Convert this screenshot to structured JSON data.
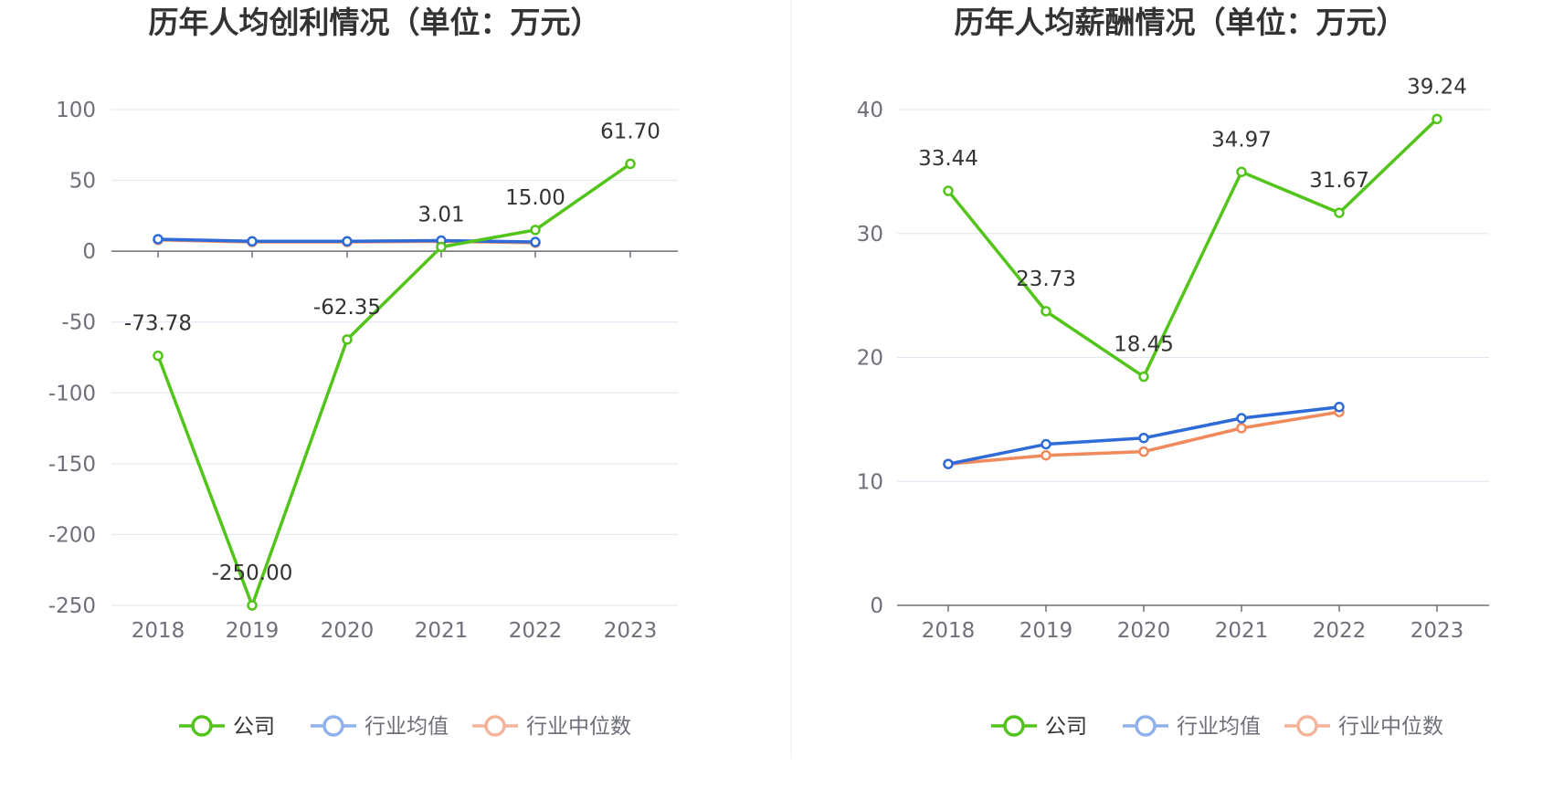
{
  "chart_data": [
    {
      "type": "line",
      "title": "历年人均创利情况（单位：万元）",
      "categories": [
        "2018",
        "2019",
        "2020",
        "2021",
        "2022",
        "2023"
      ],
      "ylim": [
        -250,
        100
      ],
      "yticks": [
        100,
        50,
        0,
        -50,
        -100,
        -150,
        -200,
        -250
      ],
      "grid": true,
      "legend_position": "bottom-center",
      "series": [
        {
          "name": "公司",
          "color": "#52c41a",
          "values": [
            -73.78,
            -250.0,
            -62.35,
            3.01,
            15.0,
            61.7
          ],
          "labels": [
            "-73.78",
            "-250.00",
            "-62.35",
            "3.01",
            "15.00",
            "61.70"
          ]
        },
        {
          "name": "行业均值",
          "color": "#2f6bd8",
          "values": [
            8.5,
            7.0,
            7.0,
            7.5,
            6.5,
            null
          ],
          "labels": null
        },
        {
          "name": "行业中位数",
          "color": "#f08a5d",
          "values": [
            8.0,
            6.5,
            6.5,
            7.0,
            6.0,
            null
          ],
          "labels": null
        }
      ]
    },
    {
      "type": "line",
      "title": "历年人均薪酬情况（单位：万元）",
      "categories": [
        "2018",
        "2019",
        "2020",
        "2021",
        "2022",
        "2023"
      ],
      "ylim": [
        0,
        40
      ],
      "yticks": [
        40,
        30,
        20,
        10,
        0
      ],
      "grid": true,
      "legend_position": "bottom-center",
      "series": [
        {
          "name": "公司",
          "color": "#52c41a",
          "values": [
            33.44,
            23.73,
            18.45,
            34.97,
            31.67,
            39.24
          ],
          "labels": [
            "33.44",
            "23.73",
            "18.45",
            "34.97",
            "31.67",
            "39.24"
          ]
        },
        {
          "name": "行业均值",
          "color": "#2f6bd8",
          "values": [
            11.4,
            13.0,
            13.5,
            15.1,
            16.0,
            null
          ],
          "labels": null
        },
        {
          "name": "行业中位数",
          "color": "#f08a5d",
          "values": [
            11.4,
            12.1,
            12.4,
            14.3,
            15.6,
            null
          ],
          "labels": null
        }
      ]
    }
  ],
  "legend": {
    "items": [
      "公司",
      "行业均值",
      "行业中位数"
    ],
    "icon_colors": [
      "#52c41a",
      "#8fb1ee",
      "#f5b49a"
    ],
    "text_colors": [
      "#333333",
      "#6e7079",
      "#6e7079"
    ]
  }
}
